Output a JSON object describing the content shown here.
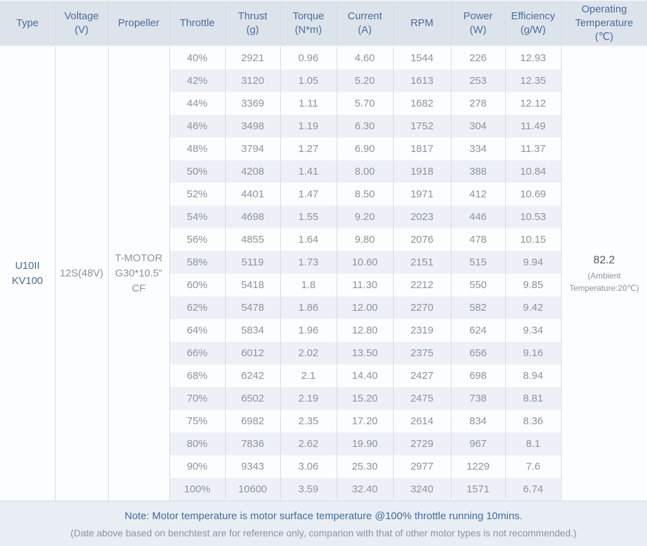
{
  "chart_data": {
    "type": "table",
    "columns": [
      "Type",
      "Voltage\n(V)",
      "Propeller",
      "Throttle",
      "Thrust\n(g)",
      "Torque\n(N*m)",
      "Current\n(A)",
      "RPM",
      "Power\n(W)",
      "Efficiency\n(g/W)",
      "Operating\nTemperature\n(℃)"
    ],
    "merged": {
      "type": "U10II\nKV100",
      "voltage": "12S(48V)",
      "propeller": "T-MOTOR\nG30*10.5”\nCF",
      "operating_temperature": "82.2",
      "operating_temperature_note": "(Ambient Temperature:20℃)"
    },
    "rows": [
      [
        "40%",
        "2921",
        "0.96",
        "4.60",
        "1544",
        "226",
        "12.93"
      ],
      [
        "42%",
        "3120",
        "1.05",
        "5.20",
        "1613",
        "253",
        "12.35"
      ],
      [
        "44%",
        "3369",
        "1.11",
        "5.70",
        "1682",
        "278",
        "12.12"
      ],
      [
        "46%",
        "3498",
        "1.19",
        "6.30",
        "1752",
        "304",
        "11.49"
      ],
      [
        "48%",
        "3794",
        "1.27",
        "6.90",
        "1817",
        "334",
        "11.37"
      ],
      [
        "50%",
        "4208",
        "1.41",
        "8.00",
        "1918",
        "388",
        "10.84"
      ],
      [
        "52%",
        "4401",
        "1.47",
        "8.50",
        "1971",
        "412",
        "10.69"
      ],
      [
        "54%",
        "4698",
        "1.55",
        "9.20",
        "2023",
        "446",
        "10.53"
      ],
      [
        "56%",
        "4855",
        "1.64",
        "9.80",
        "2076",
        "478",
        "10.15"
      ],
      [
        "58%",
        "5119",
        "1.73",
        "10.60",
        "2151",
        "515",
        "9.94"
      ],
      [
        "60%",
        "5418",
        "1.8",
        "11.30",
        "2212",
        "550",
        "9.85"
      ],
      [
        "62%",
        "5478",
        "1.86",
        "12.00",
        "2270",
        "582",
        "9.42"
      ],
      [
        "64%",
        "5834",
        "1.96",
        "12.80",
        "2319",
        "624",
        "9.34"
      ],
      [
        "66%",
        "6012",
        "2.02",
        "13.50",
        "2375",
        "656",
        "9.16"
      ],
      [
        "68%",
        "6242",
        "2.1",
        "14.40",
        "2427",
        "698",
        "8.94"
      ],
      [
        "70%",
        "6502",
        "2.19",
        "15.20",
        "2475",
        "738",
        "8.81"
      ],
      [
        "75%",
        "6982",
        "2.35",
        "17.20",
        "2614",
        "834",
        "8.36"
      ],
      [
        "80%",
        "7836",
        "2.62",
        "19.90",
        "2729",
        "967",
        "8.1"
      ],
      [
        "90%",
        "9343",
        "3.06",
        "25.30",
        "2977",
        "1229",
        "7.6"
      ],
      [
        "100%",
        "10600",
        "3.59",
        "32.40",
        "3240",
        "1571",
        "6.74"
      ]
    ],
    "layout": {
      "legend": "none",
      "grid": "vertical-borders-only",
      "zebra_striping": true
    }
  },
  "notes": {
    "line1": "Note: Motor temperature is motor surface temperature @100% throttle running 10mins.",
    "line2": "(Date above based on benchtest are for reference only, comparion with that of other motor types is not recommended.)"
  },
  "colors": {
    "header_bg": "#dde3eb",
    "header_text": "#4a6d9c",
    "row_bg": "#fcfdfe",
    "row_alt_bg": "#edf1f7",
    "data_text": "#8d939c",
    "type_text": "#4a6d9c",
    "temp_text": "#54585f",
    "note_text": "#3f6ba3",
    "page_bg": "#e9eef4",
    "border": "#d8dce2"
  }
}
